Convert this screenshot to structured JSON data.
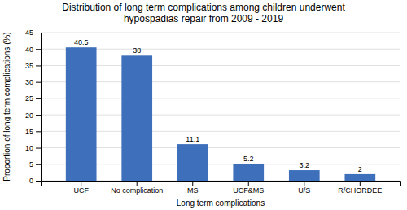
{
  "chart_data": {
    "type": "bar",
    "title": "Distribution of long term complications among children underwent\nhypospadias repair from 2009 - 2019",
    "categories": [
      "UCF",
      "No complication",
      "MS",
      "UCF&MS",
      "U/S",
      "R/CHORDEE"
    ],
    "values": [
      40.5,
      38,
      11.1,
      5.2,
      3.2,
      2
    ],
    "color": "#3d6fba",
    "x_label": "Long term complications",
    "y_label": "Proportion of long term complications (%)",
    "ylim": [
      0,
      45
    ],
    "yticks": [
      0,
      5,
      10,
      15,
      20,
      25,
      30,
      35,
      40,
      45
    ],
    "grid": true,
    "data_labels": true
  }
}
